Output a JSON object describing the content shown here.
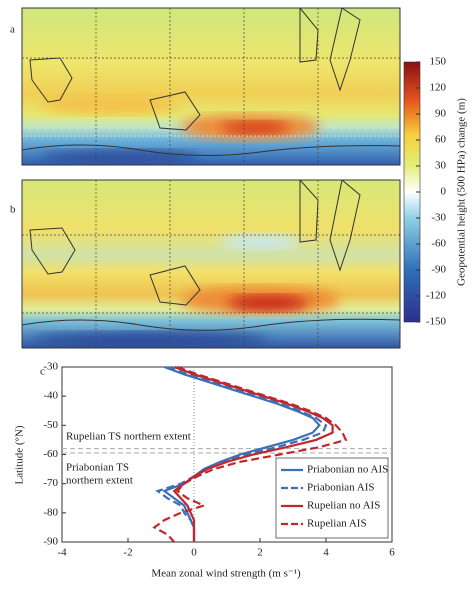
{
  "panel_labels": [
    "a",
    "b",
    "c"
  ],
  "colorbar": {
    "label": "Geopotential height (500 HPa) change (m)",
    "lim": [
      -150,
      150
    ],
    "ticks": [
      150,
      120,
      90,
      60,
      30,
      0,
      -30,
      -60,
      -90,
      -120,
      -150
    ]
  },
  "chart_data": {
    "type": "line",
    "x_label": "Mean zonal wind strength (m s⁻¹)",
    "y_label": "Latitude (°N)",
    "xlim": [
      -4,
      6
    ],
    "xticks": [
      -4,
      -2,
      0,
      2,
      4,
      6
    ],
    "ylim": [
      -30,
      -90
    ],
    "yticks": [
      -30,
      -40,
      -50,
      -60,
      -70,
      -80,
      -90
    ],
    "y": [
      -30,
      -32.5,
      -35,
      -37.5,
      -40,
      -42.5,
      -45,
      -47.5,
      -50,
      -52.5,
      -55,
      -57.5,
      -60,
      -62.5,
      -65,
      -67.5,
      -70,
      -72.5,
      -75,
      -77.5,
      -80,
      -82.5,
      -85,
      -87.5,
      -90
    ],
    "series": [
      {
        "name": "Priabonian no AIS",
        "color": "#3b6fb6",
        "dash": false,
        "values": [
          -0.9,
          -0.3,
          0.4,
          1.1,
          1.8,
          2.5,
          3.1,
          3.6,
          3.8,
          3.6,
          3.0,
          2.2,
          1.4,
          0.8,
          0.3,
          0.0,
          -0.3,
          -0.9,
          -0.6,
          -0.3,
          -0.2,
          -0.1,
          0.0,
          0.0,
          0.0
        ]
      },
      {
        "name": "Priabonian AIS",
        "color": "#3b6fb6",
        "dash": true,
        "values": [
          -0.8,
          -0.2,
          0.5,
          1.2,
          1.9,
          2.6,
          3.2,
          3.7,
          4.0,
          3.9,
          3.3,
          2.5,
          1.6,
          0.9,
          0.4,
          0.0,
          -0.4,
          -1.1,
          -0.8,
          -0.4,
          -0.3,
          -0.1,
          0.0,
          0.0,
          0.0
        ]
      },
      {
        "name": "Rupelian no AIS",
        "color": "#c1272d",
        "dash": false,
        "values": [
          -0.6,
          0.0,
          0.7,
          1.4,
          2.1,
          2.8,
          3.4,
          3.9,
          4.2,
          4.2,
          3.7,
          2.8,
          1.8,
          1.0,
          0.4,
          0.0,
          -0.3,
          -0.6,
          -0.4,
          -0.2,
          -0.1,
          0.0,
          0.0,
          0.0,
          0.0
        ]
      },
      {
        "name": "Rupelian AIS",
        "color": "#c1272d",
        "dash": true,
        "values": [
          -0.5,
          0.1,
          0.8,
          1.5,
          2.2,
          2.9,
          3.5,
          4.0,
          4.3,
          4.5,
          4.6,
          3.8,
          2.6,
          1.4,
          0.6,
          0.1,
          -0.3,
          -0.5,
          -0.2,
          0.3,
          -0.4,
          -0.9,
          -1.2,
          -0.8,
          -0.6
        ]
      }
    ],
    "hlines": [
      -58,
      -59.5
    ],
    "annotations": [
      "Rupelian TS northern extent",
      "Priabonian TS",
      "northern extent"
    ],
    "legend": "lower right"
  }
}
